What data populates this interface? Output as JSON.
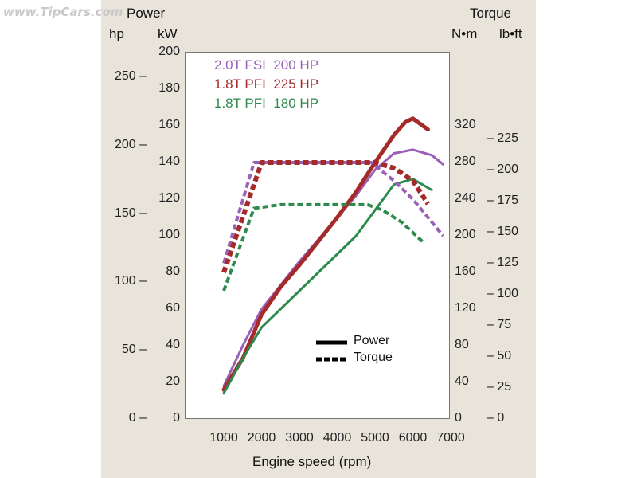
{
  "watermark": "www.TipCars.com",
  "chart_data": {
    "type": "line",
    "left_title": "Power",
    "right_title": "Torque",
    "unit_hp": "hp",
    "unit_kw": "kW",
    "unit_nm": "N•m",
    "unit_lbft": "lb•ft",
    "xlabel": "Engine speed (rpm)",
    "x_ticks": [
      1000,
      2000,
      3000,
      4000,
      5000,
      6000,
      7000
    ],
    "xlim": [
      700,
      7000
    ],
    "kw_ticks": [
      0,
      20,
      40,
      60,
      80,
      100,
      120,
      140,
      160,
      180,
      200
    ],
    "kw_lim": [
      0,
      200
    ],
    "hp_ticks": [
      0,
      50,
      100,
      150,
      200,
      250
    ],
    "nm_ticks": [
      0,
      40,
      80,
      120,
      160,
      200,
      240,
      280,
      320
    ],
    "lbft_ticks": [
      0,
      25,
      50,
      75,
      100,
      125,
      150,
      175,
      200,
      225
    ],
    "legend_engines": [
      {
        "label": "2.0T FSI  200 HP",
        "color": "#9a5fb8"
      },
      {
        "label": "1.8T PFI  225 HP",
        "color": "#a52a2a"
      },
      {
        "label": "1.8T PFI  180 HP",
        "color": "#2e8b4e"
      }
    ],
    "legend_styles": [
      {
        "label": "Power",
        "dash": "solid"
      },
      {
        "label": "Torque",
        "dash": "dashed"
      }
    ],
    "series": [
      {
        "engine": "2.0T FSI  200 HP",
        "kind": "power",
        "color": "#9a5fb8",
        "width": 3,
        "x": [
          1000,
          1500,
          2000,
          2500,
          3000,
          3500,
          4000,
          4500,
          5000,
          5500,
          6000,
          6500,
          6800
        ],
        "y": [
          18,
          40,
          60,
          73,
          86,
          98,
          110,
          122,
          136,
          145,
          147,
          144,
          139
        ]
      },
      {
        "engine": "1.8T PFI  225 HP",
        "kind": "power",
        "color": "#a52a2a",
        "width": 5,
        "x": [
          1000,
          1500,
          2000,
          2500,
          3000,
          3500,
          4000,
          4500,
          5000,
          5500,
          5800,
          6000,
          6400
        ],
        "y": [
          16,
          33,
          57,
          72,
          84,
          97,
          110,
          124,
          140,
          155,
          162,
          164,
          158
        ]
      },
      {
        "engine": "1.8T PFI  180 HP",
        "kind": "power",
        "color": "#2e8b4e",
        "width": 3,
        "x": [
          1000,
          1500,
          2000,
          2500,
          3000,
          3500,
          4000,
          4500,
          5000,
          5500,
          6000,
          6500
        ],
        "y": [
          14,
          33,
          50,
          60,
          70,
          80,
          90,
          100,
          114,
          128,
          131,
          125
        ]
      },
      {
        "engine": "2.0T FSI  200 HP",
        "kind": "torque",
        "color": "#9a5fb8",
        "width": 4,
        "x": [
          1000,
          1800,
          2500,
          3000,
          4000,
          4500,
          4900,
          5500,
          6000,
          6500,
          6800
        ],
        "y": [
          170,
          280,
          280,
          280,
          280,
          280,
          280,
          260,
          240,
          215,
          200
        ]
      },
      {
        "engine": "1.8T PFI  225 HP",
        "kind": "torque",
        "color": "#a52a2a",
        "width": 6,
        "x": [
          1000,
          2000,
          2500,
          3000,
          4000,
          5000,
          5500,
          6000,
          6400
        ],
        "y": [
          160,
          280,
          280,
          280,
          280,
          280,
          274,
          260,
          235
        ]
      },
      {
        "engine": "1.8T PFI  180 HP",
        "kind": "torque",
        "color": "#2e8b4e",
        "width": 4,
        "x": [
          1000,
          1800,
          2500,
          3000,
          4000,
          4800,
          5200,
          5700,
          6300
        ],
        "y": [
          140,
          230,
          234,
          234,
          234,
          234,
          228,
          215,
          192
        ]
      }
    ]
  }
}
